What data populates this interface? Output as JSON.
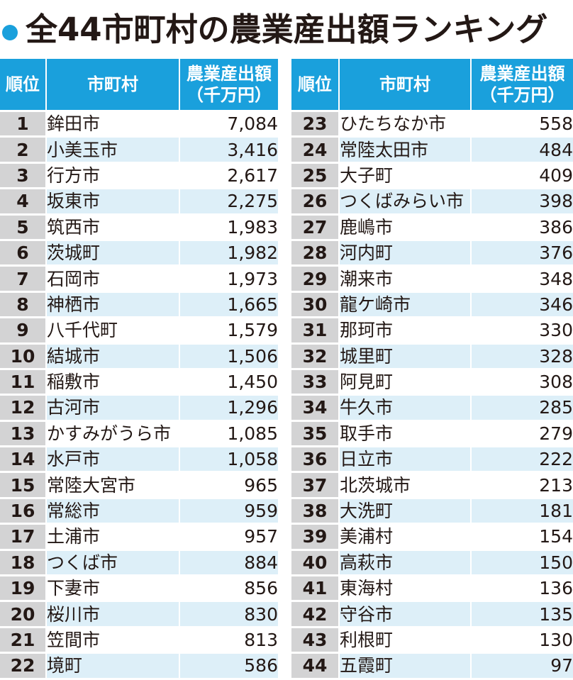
{
  "title": "全44市町村の農業産出額ランキング",
  "colors": {
    "accent": "#1aa0dc",
    "rank_cell": "#d3d3d4",
    "stripe": "#ddeff8"
  },
  "headers": {
    "rank": "順位",
    "city": "市町村",
    "amount_line1": "農業産出額",
    "amount_line2": "（千万円）"
  },
  "left_rows": [
    {
      "rank": "1",
      "city": "鉾田市",
      "amount": "7,084"
    },
    {
      "rank": "2",
      "city": "小美玉市",
      "amount": "3,416"
    },
    {
      "rank": "3",
      "city": "行方市",
      "amount": "2,617"
    },
    {
      "rank": "4",
      "city": "坂東市",
      "amount": "2,275"
    },
    {
      "rank": "5",
      "city": "筑西市",
      "amount": "1,983"
    },
    {
      "rank": "6",
      "city": "茨城町",
      "amount": "1,982"
    },
    {
      "rank": "7",
      "city": "石岡市",
      "amount": "1,973"
    },
    {
      "rank": "8",
      "city": "神栖市",
      "amount": "1,665"
    },
    {
      "rank": "9",
      "city": "八千代町",
      "amount": "1,579"
    },
    {
      "rank": "10",
      "city": "結城市",
      "amount": "1,506"
    },
    {
      "rank": "11",
      "city": "稲敷市",
      "amount": "1,450"
    },
    {
      "rank": "12",
      "city": "古河市",
      "amount": "1,296"
    },
    {
      "rank": "13",
      "city": "かすみがうら市",
      "amount": "1,085"
    },
    {
      "rank": "14",
      "city": "水戸市",
      "amount": "1,058"
    },
    {
      "rank": "15",
      "city": "常陸大宮市",
      "amount": "965"
    },
    {
      "rank": "16",
      "city": "常総市",
      "amount": "959"
    },
    {
      "rank": "17",
      "city": "土浦市",
      "amount": "957"
    },
    {
      "rank": "18",
      "city": "つくば市",
      "amount": "884"
    },
    {
      "rank": "19",
      "city": "下妻市",
      "amount": "856"
    },
    {
      "rank": "20",
      "city": "桜川市",
      "amount": "830"
    },
    {
      "rank": "21",
      "city": "笠間市",
      "amount": "813"
    },
    {
      "rank": "22",
      "city": "境町",
      "amount": "586"
    }
  ],
  "right_rows": [
    {
      "rank": "23",
      "city": "ひたちなか市",
      "amount": "558"
    },
    {
      "rank": "24",
      "city": "常陸太田市",
      "amount": "484"
    },
    {
      "rank": "25",
      "city": "大子町",
      "amount": "409"
    },
    {
      "rank": "26",
      "city": "つくばみらい市",
      "amount": "398"
    },
    {
      "rank": "27",
      "city": "鹿嶋市",
      "amount": "386"
    },
    {
      "rank": "28",
      "city": "河内町",
      "amount": "376"
    },
    {
      "rank": "29",
      "city": "潮来市",
      "amount": "348"
    },
    {
      "rank": "30",
      "city": "龍ケ崎市",
      "amount": "346"
    },
    {
      "rank": "31",
      "city": "那珂市",
      "amount": "330"
    },
    {
      "rank": "32",
      "city": "城里町",
      "amount": "328"
    },
    {
      "rank": "33",
      "city": "阿見町",
      "amount": "308"
    },
    {
      "rank": "34",
      "city": "牛久市",
      "amount": "285"
    },
    {
      "rank": "35",
      "city": "取手市",
      "amount": "279"
    },
    {
      "rank": "36",
      "city": "日立市",
      "amount": "222"
    },
    {
      "rank": "37",
      "city": "北茨城市",
      "amount": "213"
    },
    {
      "rank": "38",
      "city": "大洗町",
      "amount": "181"
    },
    {
      "rank": "39",
      "city": "美浦村",
      "amount": "154"
    },
    {
      "rank": "40",
      "city": "高萩市",
      "amount": "150"
    },
    {
      "rank": "41",
      "city": "東海村",
      "amount": "136"
    },
    {
      "rank": "42",
      "city": "守谷市",
      "amount": "135"
    },
    {
      "rank": "43",
      "city": "利根町",
      "amount": "130"
    },
    {
      "rank": "44",
      "city": "五霞町",
      "amount": "97"
    }
  ]
}
